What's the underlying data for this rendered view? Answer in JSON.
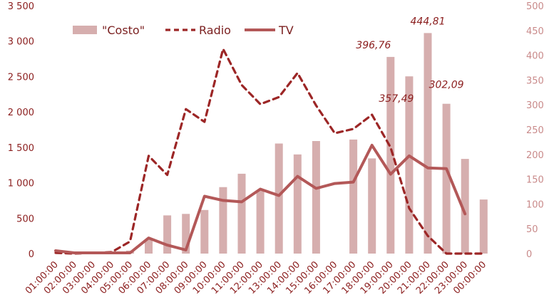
{
  "chart_data": {
    "type": "bar",
    "title": "",
    "xlabel": "",
    "ylabel": "",
    "categories": [
      "01:00:00",
      "02:00:00",
      "03:00:00",
      "04:00:00",
      "05:00:00",
      "06:00:00",
      "07:00:00",
      "08:00:00",
      "09:00:00",
      "10:00:00",
      "11:00:00",
      "12:00:00",
      "13:00:00",
      "14:00:00",
      "15:00:00",
      "16:00:00",
      "17:00:00",
      "18:00:00",
      "19:00:00",
      "20:00:00",
      "21:00:00",
      "22:00:00",
      "23:00:00",
      "00:00:00"
    ],
    "y_left": {
      "min": 0,
      "max": 3500,
      "ticks": [
        "0",
        "500",
        "1 000",
        "1 500",
        "2 000",
        "2 500",
        "3 000",
        "3 500"
      ]
    },
    "y_right": {
      "min": 0,
      "max": 500,
      "ticks": [
        "0",
        "50",
        "100",
        "150",
        "200",
        "250",
        "300",
        "350",
        "400",
        "450",
        "500"
      ]
    },
    "series": [
      {
        "name": "\"Costo\"",
        "type": "bar",
        "axis": "right",
        "color": "#d6aeae",
        "values": [
          0,
          0,
          0,
          0,
          6,
          28,
          77,
          80,
          88,
          134,
          161,
          128,
          222,
          200,
          227,
          0,
          230,
          192,
          396.76,
          357.49,
          444.81,
          302.09,
          191,
          109
        ]
      },
      {
        "name": "Radio",
        "type": "line",
        "axis": "left",
        "dash": true,
        "color": "#9c2626",
        "values": [
          10,
          0,
          10,
          20,
          170,
          1380,
          1110,
          2040,
          1860,
          2890,
          2380,
          2110,
          2210,
          2550,
          2090,
          1700,
          1760,
          1960,
          1500,
          640,
          250,
          0,
          0,
          0
        ]
      },
      {
        "name": "TV",
        "type": "line",
        "axis": "left",
        "dash": false,
        "color": "#b35858",
        "values": [
          40,
          10,
          10,
          10,
          10,
          220,
          120,
          50,
          810,
          750,
          730,
          910,
          820,
          1090,
          920,
          990,
          1010,
          1530,
          1120,
          1380,
          1210,
          1200,
          560,
          null
        ]
      }
    ],
    "annotations": [
      {
        "category": "19:00:00",
        "value": 396.76,
        "label": "396,76"
      },
      {
        "category": "20:00:00",
        "value": 357.49,
        "label": "357,49"
      },
      {
        "category": "21:00:00",
        "value": 444.81,
        "label": "444,81"
      },
      {
        "category": "22:00:00",
        "value": 302.09,
        "label": "302,09"
      }
    ],
    "legend": {
      "position": "top-left",
      "entries": [
        "\"Costo\"",
        "Radio",
        "TV"
      ]
    },
    "grid": false
  }
}
